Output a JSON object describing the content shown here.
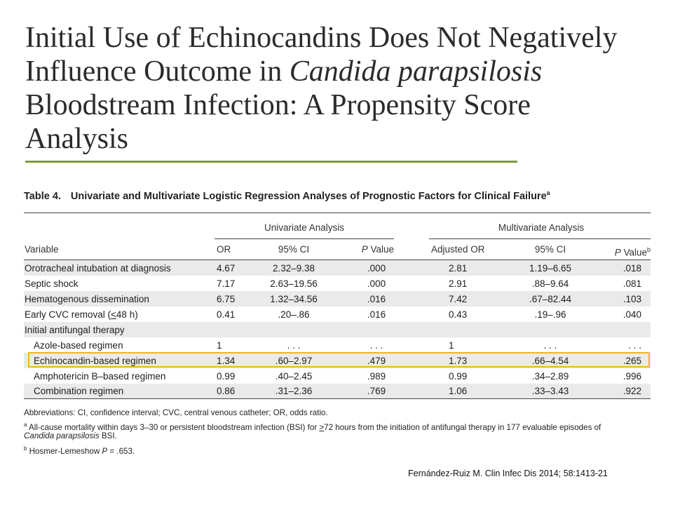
{
  "slide": {
    "title_line1": "Initial Use of Echinocandins Does Not Negatively",
    "title_line2_pre": "Influence Outcome in ",
    "title_line2_italic": "Candida parapsilosis",
    "title_line3": "Bloodstream Infection: A Propensity Score",
    "title_line4": "Analysis",
    "accent_color": "#7a9a3a",
    "highlight_color": "#f2b51b",
    "source": "Fernández-Ruiz M. Clin Infec Dis 2014; 58:1413-21"
  },
  "table": {
    "number": "Table 4.",
    "caption": "Univariate and Multivariate Logistic Regression Analyses of Prognostic Factors for Clinical Failure",
    "caption_sup": "a",
    "group_univariate": "Univariate Analysis",
    "group_multivariate": "Multivariate Analysis",
    "headers": {
      "variable": "Variable",
      "or": "OR",
      "ci1": "95% CI",
      "p1_italic": "P",
      "p1_rest": " Value",
      "adj_or": "Adjusted OR",
      "ci2": "95% CI",
      "p2_italic": "P",
      "p2_rest": " Value",
      "p2_sup": "b"
    },
    "rows": [
      {
        "variable": "Orotracheal intubation at diagnosis",
        "or": "4.67",
        "ci1": "2.32–9.38",
        "p1": ".000",
        "adj_or": "2.81",
        "ci2": "1.19–6.65",
        "p2": ".018"
      },
      {
        "variable": "Septic shock",
        "or": "7.17",
        "ci1": "2.63–19.56",
        "p1": ".000",
        "adj_or": "2.91",
        "ci2": ".88–9.64",
        "p2": ".081"
      },
      {
        "variable": "Hematogenous dissemination",
        "or": "6.75",
        "ci1": "1.32–34.56",
        "p1": ".016",
        "adj_or": "7.42",
        "ci2": ".67–82.44",
        "p2": ".103"
      },
      {
        "variable_pre": "Early CVC removal (",
        "variable_u": "<",
        "variable_post": "48 h)",
        "or": "0.41",
        "ci1": ".20–.86",
        "p1": ".016",
        "adj_or": "0.43",
        "ci2": ".19–.96",
        "p2": ".040"
      },
      {
        "variable": "Initial antifungal therapy",
        "or": "",
        "ci1": "",
        "p1": "",
        "adj_or": "",
        "ci2": "",
        "p2": ""
      },
      {
        "variable": "Azole-based regimen",
        "or": "1",
        "ci1": ". . .",
        "p1": ". . .",
        "adj_or": "1",
        "ci2": ". . .",
        "p2": ". . ."
      },
      {
        "variable": "Echinocandin-based regimen",
        "or": "1.34",
        "ci1": ".60–2.97",
        "p1": ".479",
        "adj_or": "1.73",
        "ci2": ".66–4.54",
        "p2": ".265"
      },
      {
        "variable": "Amphotericin B–based regimen",
        "or": "0.99",
        "ci1": ".40–2.45",
        "p1": ".989",
        "adj_or": "0.99",
        "ci2": ".34–2.89",
        "p2": ".996"
      },
      {
        "variable": "Combination regimen",
        "or": "0.86",
        "ci1": ".31–2.36",
        "p1": ".769",
        "adj_or": "1.06",
        "ci2": ".33–3.43",
        "p2": ".922"
      }
    ],
    "footnotes": {
      "abbrev": "Abbreviations: CI, confidence interval; CVC, central venous catheter; OR, odds ratio.",
      "a_sup": "a",
      "a_pre": " All-cause mortality within days 3–30 or persistent bloodstream infection (BSI) for ",
      "a_u": ">",
      "a_post": "72 hours from the initiation of antifungal therapy in 177 evaluable episodes of",
      "a_line2_italic": "Candida parapsilosis",
      "a_line2_rest": " BSI.",
      "b_sup": "b",
      "b_pre": " Hosmer-Lemeshow ",
      "b_italic": "P",
      "b_post": " = .653."
    }
  }
}
